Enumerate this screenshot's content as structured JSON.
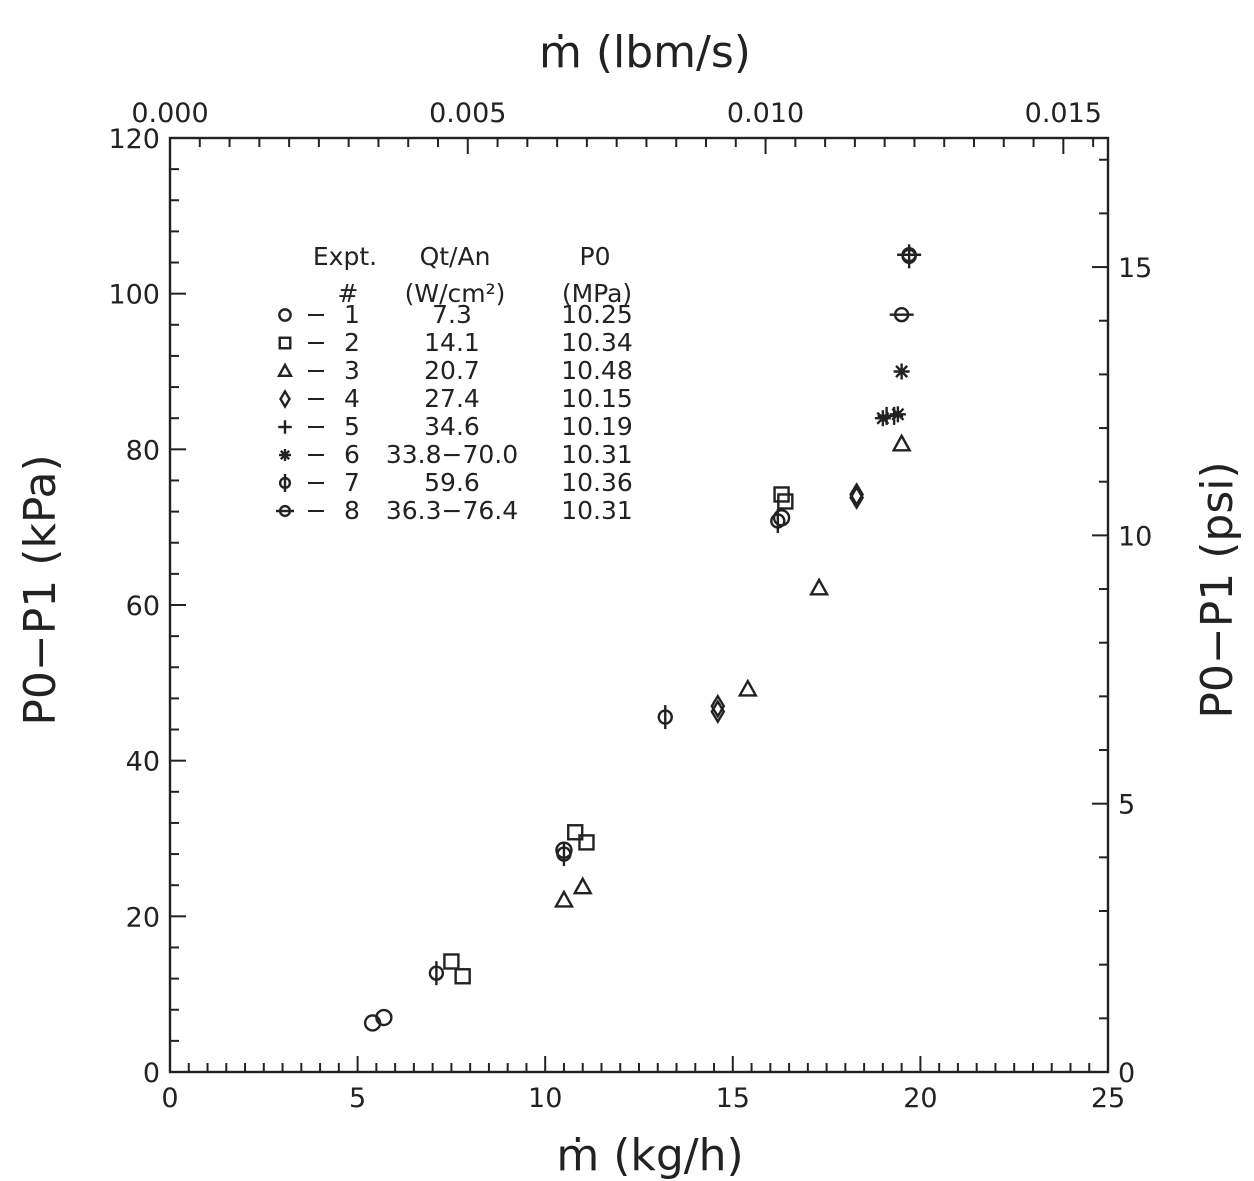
{
  "chart_data": {
    "type": "scatter",
    "xlabel": "ṁ (kg/h)",
    "ylabel": "P0−P1 (kPa)",
    "x2label": "ṁ (lbm/s)",
    "y2label": "P0−P1 (psi)",
    "xlim": [
      0,
      25
    ],
    "ylim": [
      0,
      120
    ],
    "x2lim": [
      0,
      0.01575
    ],
    "y2lim": [
      0,
      17.405
    ],
    "xticks": [
      "0",
      "5",
      "10",
      "15",
      "20",
      "25"
    ],
    "yticks": [
      "0",
      "20",
      "40",
      "60",
      "80",
      "100",
      "120"
    ],
    "x2ticks": [
      "0.000",
      "0.005",
      "0.010",
      "0.015"
    ],
    "y2ticks": [
      "0",
      "5",
      "10",
      "15"
    ],
    "x2tick_values": [
      0,
      0.005,
      0.01,
      0.015
    ],
    "y2tick_values": [
      0,
      5,
      10,
      15
    ],
    "grid": false,
    "legend_position": "top-left",
    "legend": {
      "headers": [
        {
          "line1": "Expt.",
          "line2": "#"
        },
        {
          "line1": "Qt/An",
          "line2": "(W/cm²)"
        },
        {
          "line1": "P0",
          "line2": "(MPa)"
        }
      ],
      "entries": [
        {
          "marker": "circle",
          "expt": "1",
          "q": "7.3",
          "p0": "10.25"
        },
        {
          "marker": "square",
          "expt": "2",
          "q": "14.1",
          "p0": "10.34"
        },
        {
          "marker": "triangle",
          "expt": "3",
          "q": "20.7",
          "p0": "10.48"
        },
        {
          "marker": "diamond",
          "expt": "4",
          "q": "27.4",
          "p0": "10.15"
        },
        {
          "marker": "plus",
          "expt": "5",
          "q": "34.6",
          "p0": "10.19"
        },
        {
          "marker": "asterisk",
          "expt": "6",
          "q": "33.8−70.0",
          "p0": "10.31"
        },
        {
          "marker": "circle-vbar",
          "expt": "7",
          "q": "59.6",
          "p0": "10.36"
        },
        {
          "marker": "circle-hbar",
          "expt": "8",
          "q": "36.3−76.4",
          "p0": "10.31"
        }
      ]
    },
    "series": [
      {
        "marker": "circle",
        "points": [
          [
            5.4,
            6.3
          ],
          [
            5.7,
            7.0
          ],
          [
            10.5,
            28.5
          ],
          [
            16.3,
            71.2
          ]
        ]
      },
      {
        "marker": "square",
        "points": [
          [
            7.5,
            14.2
          ],
          [
            7.8,
            12.3
          ],
          [
            10.8,
            30.8
          ],
          [
            11.1,
            29.5
          ],
          [
            16.3,
            74.2
          ],
          [
            16.4,
            73.3
          ]
        ]
      },
      {
        "marker": "triangle",
        "points": [
          [
            10.5,
            22.1
          ],
          [
            11.0,
            23.8
          ],
          [
            15.4,
            49.2
          ],
          [
            17.3,
            62.2
          ],
          [
            19.5,
            80.7
          ]
        ]
      },
      {
        "marker": "diamond",
        "points": [
          [
            14.6,
            46.3
          ],
          [
            14.6,
            47.0
          ],
          [
            18.3,
            74.2
          ],
          [
            18.3,
            73.8
          ]
        ]
      },
      {
        "marker": "plus",
        "points": [
          [
            19.1,
            84.3
          ],
          [
            19.3,
            84.3
          ]
        ]
      },
      {
        "marker": "asterisk",
        "points": [
          [
            19.0,
            84.0
          ],
          [
            19.4,
            84.5
          ],
          [
            19.5,
            90.0
          ]
        ]
      },
      {
        "marker": "circle-vbar",
        "points": [
          [
            7.1,
            12.7
          ],
          [
            10.5,
            28.0
          ],
          [
            13.2,
            45.6
          ],
          [
            16.2,
            70.8
          ],
          [
            19.7,
            104.8
          ]
        ]
      },
      {
        "marker": "circle-hbar",
        "points": [
          [
            19.5,
            97.3
          ],
          [
            19.7,
            105.0
          ]
        ]
      }
    ]
  }
}
